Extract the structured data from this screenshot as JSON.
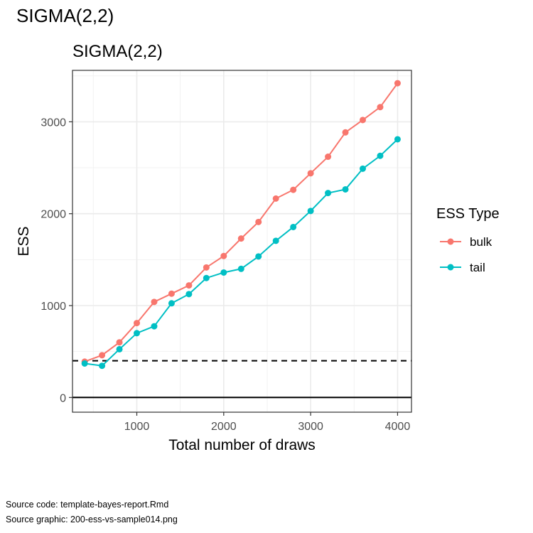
{
  "page": {
    "title": "SIGMA(2,2)"
  },
  "chart_data": {
    "type": "line",
    "title": "SIGMA(2,2)",
    "xlabel": "Total number of draws",
    "ylabel": "ESS",
    "xlim": [
      260,
      4160
    ],
    "ylim": [
      -160,
      3560
    ],
    "x_ticks": [
      1000,
      2000,
      3000,
      4000
    ],
    "x_tick_labels": [
      "1000",
      "2000",
      "3000",
      "4000"
    ],
    "y_ticks": [
      0,
      1000,
      2000,
      3000
    ],
    "y_tick_labels": [
      "0",
      "1000",
      "2000",
      "3000"
    ],
    "grid": true,
    "legend": {
      "title": "ESS Type",
      "position": "right"
    },
    "x": [
      400,
      600,
      800,
      1000,
      1200,
      1400,
      1600,
      1800,
      2000,
      2200,
      2400,
      2600,
      2800,
      3000,
      3200,
      3400,
      3600,
      3800,
      4000
    ],
    "series": [
      {
        "name": "bulk",
        "color": "#F8766D",
        "values": [
          390,
          460,
          600,
          810,
          1040,
          1130,
          1220,
          1415,
          1540,
          1730,
          1910,
          2165,
          2260,
          2440,
          2620,
          2885,
          3020,
          3160,
          3420
        ]
      },
      {
        "name": "tail",
        "color": "#00BFC4",
        "values": [
          370,
          345,
          525,
          700,
          775,
          1025,
          1125,
          1300,
          1360,
          1400,
          1535,
          1705,
          1855,
          2030,
          2225,
          2265,
          2490,
          2630,
          2810
        ]
      }
    ],
    "reference_lines": [
      {
        "y": 0,
        "style": "solid",
        "color": "#000000"
      },
      {
        "y": 400,
        "style": "dashed",
        "color": "#000000"
      }
    ]
  },
  "footer": {
    "source_code": "Source code: template-bayes-report.Rmd",
    "source_graphic": "Source graphic: 200-ess-vs-sample014.png"
  }
}
